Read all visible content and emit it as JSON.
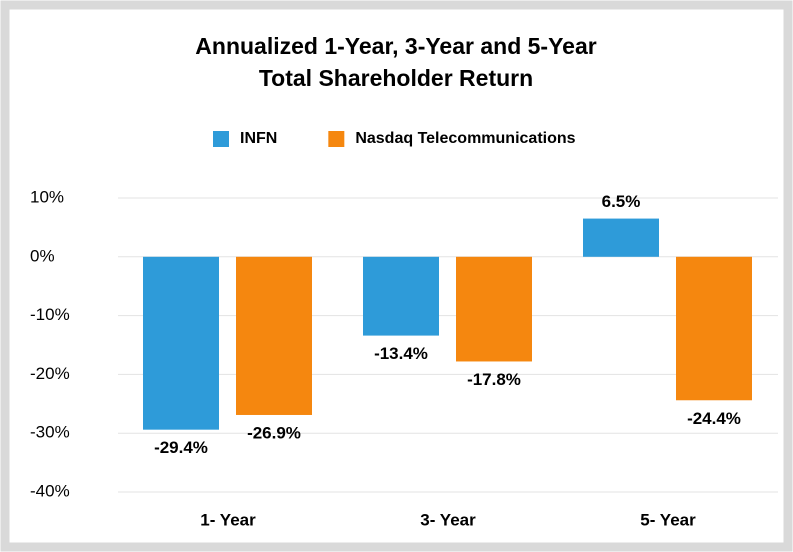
{
  "chart_data": {
    "type": "bar",
    "title": [
      "Annualized 1-Year, 3-Year and 5-Year",
      "Total Shareholder Return"
    ],
    "categories": [
      "1- Year",
      "3- Year",
      "5- Year"
    ],
    "series": [
      {
        "name": "INFN",
        "color": "#2e9bd9",
        "values": [
          -29.4,
          -13.4,
          6.5
        ],
        "value_labels": [
          "-29.4%",
          "-13.4%",
          "6.5%"
        ]
      },
      {
        "name": "Nasdaq Telecommunications",
        "color": "#f5870f",
        "values": [
          -26.9,
          -17.8,
          -24.4
        ],
        "value_labels": [
          "-26.9%",
          "-17.8%",
          "-24.4%"
        ]
      }
    ],
    "ylim": [
      -40,
      10
    ],
    "yticks": [
      {
        "value": 10,
        "label": "10%"
      },
      {
        "value": 0,
        "label": "0%"
      },
      {
        "value": -10,
        "label": "-10%"
      },
      {
        "value": -20,
        "label": "-20%"
      },
      {
        "value": -30,
        "label": "-30%"
      },
      {
        "value": -40,
        "label": "-40%"
      }
    ],
    "grid": true,
    "legend": "top"
  }
}
